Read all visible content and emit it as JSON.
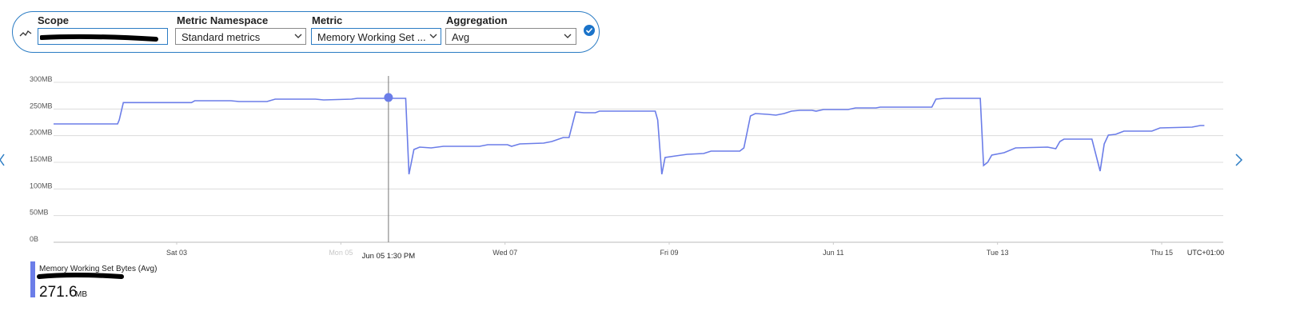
{
  "toolbar": {
    "fields": [
      {
        "label": "Scope"
      },
      {
        "label": "Metric Namespace",
        "value": "Standard metrics"
      },
      {
        "label": "Metric",
        "value": "Memory Working Set ..."
      },
      {
        "label": "Aggregation",
        "value": "Avg"
      }
    ]
  },
  "chart_data": {
    "type": "line",
    "x": [
      1.5,
      2.28,
      2.3,
      2.35,
      2.44,
      3.18,
      3.22,
      3.66,
      3.76,
      4.1,
      4.2,
      4.27,
      4.69,
      4.79,
      5.13,
      5.2,
      5.79,
      5.83,
      5.89,
      5.96,
      6.1,
      6.25,
      6.69,
      6.79,
      7.03,
      7.08,
      7.18,
      7.47,
      7.57,
      7.71,
      7.78,
      7.86,
      7.96,
      8.1,
      8.15,
      8.54,
      8.83,
      8.86,
      8.91,
      8.95,
      9.08,
      9.22,
      9.42,
      9.51,
      9.86,
      9.91,
      9.99,
      10.05,
      10.2,
      10.3,
      10.4,
      10.49,
      10.59,
      10.74,
      10.79,
      10.88,
      11.18,
      11.27,
      11.52,
      11.57,
      12.2,
      12.25,
      12.35,
      12.79,
      12.83,
      12.88,
      12.93,
      13.08,
      13.22,
      13.61,
      13.71,
      13.76,
      13.81,
      14.15,
      14.25,
      14.3,
      14.35,
      14.44,
      14.54,
      14.88,
      14.98,
      15.37,
      15.47,
      15.52
    ],
    "series": [
      {
        "name": "Memory Working Set Bytes (Avg)",
        "color": "#6b7de8",
        "values": [
          222,
          222,
          229.5,
          262,
          262,
          262,
          265.5,
          265.5,
          264,
          264,
          268.5,
          268.5,
          268.5,
          267,
          268.5,
          270,
          270,
          127.5,
          174,
          178.5,
          177,
          180,
          180,
          183,
          183,
          180,
          184.5,
          186,
          189,
          196.5,
          196.5,
          244.5,
          243,
          243,
          246,
          246,
          246,
          229.5,
          127.5,
          159,
          162,
          165,
          166.5,
          171,
          171,
          177,
          237,
          241.5,
          240,
          238.5,
          241.5,
          246,
          247.5,
          247.5,
          246,
          249,
          249,
          252,
          252,
          253.5,
          253.5,
          268.5,
          270,
          270,
          144,
          150,
          163.5,
          168,
          177,
          178.5,
          175.5,
          189,
          193.5,
          193.5,
          133.5,
          184.5,
          201,
          202.5,
          208.5,
          208.5,
          214.5,
          216,
          219,
          219
        ]
      }
    ],
    "ylim": [
      0,
      300
    ],
    "yticks": [
      {
        "value": 0,
        "label": "0B"
      },
      {
        "value": 50,
        "label": "50MB"
      },
      {
        "value": 100,
        "label": "100MB"
      },
      {
        "value": 150,
        "label": "150MB"
      },
      {
        "value": 200,
        "label": "200MB"
      },
      {
        "value": 250,
        "label": "250MB"
      },
      {
        "value": 300,
        "label": "300MB"
      }
    ],
    "xlim": [
      1.5,
      15.75
    ],
    "xticks": [
      {
        "value": 3,
        "label": "Sat 03"
      },
      {
        "value": 5,
        "label": "Mon 05",
        "faded": true
      },
      {
        "value": 7,
        "label": "Wed 07"
      },
      {
        "value": 9,
        "label": "Fri 09"
      },
      {
        "value": 11,
        "label": "Jun 11"
      },
      {
        "value": 13,
        "label": "Tue 13"
      },
      {
        "value": 15,
        "label": "Thu 15"
      }
    ],
    "timezone": "UTC+01:00",
    "grid": true,
    "cursor": {
      "x": 5.58,
      "value": 271.6,
      "label": "Jun 05 1:30 PM"
    },
    "legend": {
      "value": 271.6,
      "unit": "MB"
    }
  }
}
